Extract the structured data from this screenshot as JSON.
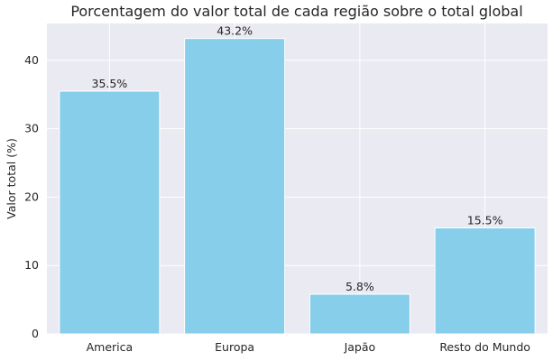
{
  "chart_data": {
    "type": "bar",
    "title": "Porcentagem do valor total de cada região sobre o total global",
    "xlabel": "",
    "ylabel": "Valor total (%)",
    "categories": [
      "America",
      "Europa",
      "Japão",
      "Resto do Mundo"
    ],
    "values": [
      35.5,
      43.2,
      5.8,
      15.5
    ],
    "value_labels": [
      "35.5%",
      "43.2%",
      "5.8%",
      "15.5%"
    ],
    "yticks": [
      0,
      10,
      20,
      30,
      40
    ],
    "ylim": [
      0,
      45.4
    ],
    "grid": true,
    "colors": {
      "bar": "#87ceeb",
      "plot_background": "#eaeaf2",
      "grid": "#ffffff",
      "text": "#262626"
    }
  }
}
